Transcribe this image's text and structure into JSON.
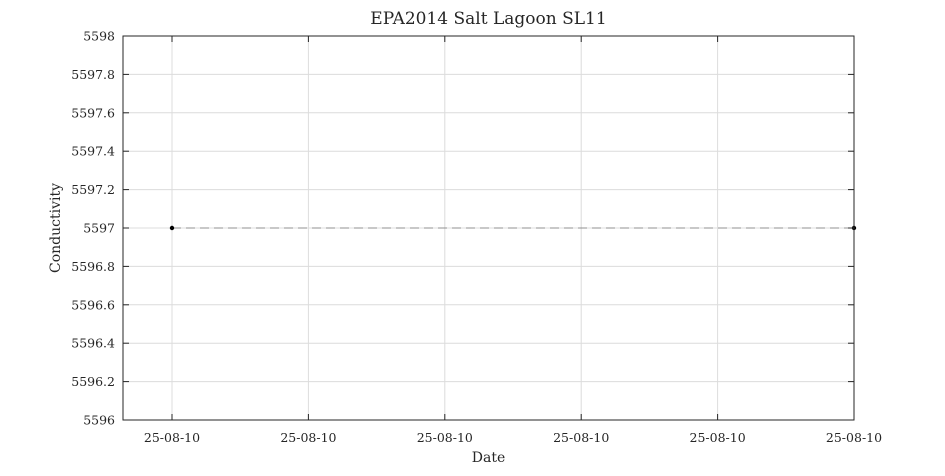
{
  "chart_data": {
    "type": "line",
    "title": "EPA2014 Salt Lagoon SL11",
    "xlabel": "Date",
    "ylabel": "Conductivity",
    "x_tick_labels": [
      "25-08-10",
      "25-08-10",
      "25-08-10",
      "25-08-10",
      "25-08-10",
      "25-08-10"
    ],
    "y_ticks": [
      5596,
      5596.2,
      5596.4,
      5596.6,
      5596.8,
      5597,
      5597.2,
      5597.4,
      5597.6,
      5597.8,
      5598
    ],
    "ylim": [
      5596,
      5598
    ],
    "grid": true,
    "legend": "none",
    "series": [
      {
        "values": [
          5597,
          5597
        ],
        "style": "dashed line with point markers",
        "color": "#000000"
      }
    ],
    "colors": {
      "axes": "#262626",
      "grid": "#dcdcdc",
      "line": "#909090",
      "marker": "#000000"
    }
  }
}
